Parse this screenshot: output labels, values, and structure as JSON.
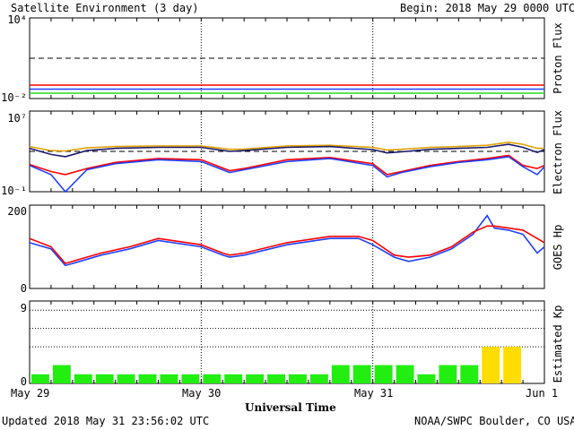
{
  "header": {
    "title": "Satellite Environment (3 day)",
    "begin": "Begin:  2018 May 29 0000 UTC"
  },
  "footer": {
    "updated": "Updated 2018 May 31 23:56:02 UTC",
    "credit": "NOAA/SWPC Boulder, CO USA"
  },
  "colors": {
    "red": "#ff0000",
    "blue": "#1f3fff",
    "green": "#22dd22",
    "orange": "#e0a000",
    "navy": "#1a1a6e",
    "kp_green": "#22ee11",
    "kp_yellow": "#ffdd00"
  },
  "chart_data": [
    {
      "type": "line",
      "ylabel": "Proton Flux",
      "yscale": "log",
      "ylim": [
        0.01,
        10000
      ],
      "ytick_labels": [
        "10⁴",
        "10⁻²"
      ],
      "threshold": 10,
      "x_unit": "hours since 2018 May 29 0000 UTC",
      "x": [
        0,
        6,
        12,
        18,
        24,
        30,
        36,
        42,
        48,
        54,
        60,
        66,
        72
      ],
      "series": [
        {
          "color": "red",
          "values": [
            0.1,
            0.1,
            0.1,
            0.1,
            0.1,
            0.1,
            0.1,
            0.1,
            0.1,
            0.1,
            0.1,
            0.1,
            0.1
          ]
        },
        {
          "color": "blue",
          "values": [
            0.05,
            0.05,
            0.05,
            0.05,
            0.05,
            0.05,
            0.05,
            0.05,
            0.05,
            0.05,
            0.05,
            0.05,
            0.05
          ]
        },
        {
          "color": "green",
          "values": [
            0.025,
            0.025,
            0.025,
            0.025,
            0.025,
            0.025,
            0.025,
            0.025,
            0.025,
            0.025,
            0.025,
            0.025,
            0.025
          ]
        }
      ]
    },
    {
      "type": "line",
      "ylabel": "Electron Flux",
      "yscale": "log",
      "ylim": [
        0.1,
        10000000
      ],
      "ytick_labels": [
        "10⁷",
        "10⁻¹"
      ],
      "threshold": 1000,
      "x": [
        0,
        3,
        5,
        8,
        12,
        18,
        24,
        28,
        30,
        36,
        42,
        48,
        50,
        52,
        56,
        60,
        64,
        67,
        69,
        71,
        72
      ],
      "series": [
        {
          "color": "orange",
          "values": [
            3000,
            1200,
            1100,
            2200,
            3000,
            3500,
            3500,
            1600,
            1700,
            3500,
            4000,
            2500,
            1400,
            1600,
            2500,
            3000,
            4000,
            8000,
            5000,
            2000,
            2000
          ]
        },
        {
          "color": "navy",
          "values": [
            2000,
            500,
            300,
            1200,
            2000,
            2500,
            2500,
            1000,
            1200,
            2500,
            3000,
            1500,
            700,
            900,
            1600,
            2000,
            2500,
            5000,
            2500,
            800,
            1500
          ]
        },
        {
          "color": "red",
          "values": [
            50,
            10,
            5,
            20,
            80,
            200,
            150,
            12,
            20,
            150,
            250,
            60,
            5,
            10,
            40,
            100,
            200,
            400,
            40,
            20,
            40
          ]
        },
        {
          "color": "blue",
          "values": [
            40,
            5,
            0.1,
            15,
            60,
            150,
            100,
            8,
            15,
            100,
            200,
            40,
            3,
            8,
            30,
            80,
            150,
            300,
            30,
            5,
            30
          ]
        }
      ]
    },
    {
      "type": "line",
      "ylabel": "GOES Hp",
      "ylim": [
        0,
        200
      ],
      "ytick_labels": [
        "200",
        "0"
      ],
      "x": [
        0,
        3,
        5,
        7,
        10,
        14,
        18,
        24,
        27,
        28,
        30,
        36,
        42,
        46,
        48,
        51,
        53,
        56,
        59,
        62,
        64,
        65,
        67,
        69,
        71,
        72
      ],
      "series": [
        {
          "color": "blue",
          "values": [
            110,
            95,
            55,
            65,
            80,
            95,
            115,
            100,
            80,
            75,
            80,
            105,
            120,
            120,
            105,
            75,
            65,
            75,
            95,
            130,
            175,
            145,
            140,
            130,
            85,
            100
          ]
        },
        {
          "color": "red",
          "values": [
            120,
            100,
            60,
            70,
            85,
            100,
            120,
            105,
            85,
            80,
            85,
            110,
            125,
            125,
            115,
            80,
            75,
            80,
            100,
            135,
            150,
            150,
            145,
            140,
            120,
            110
          ]
        }
      ]
    },
    {
      "type": "bar",
      "ylabel": "Estimated Kp",
      "ylim": [
        0,
        9
      ],
      "ytick_labels": [
        "9",
        "0"
      ],
      "gridlines": [
        4,
        6,
        8
      ],
      "bin_hours": 3,
      "values": [
        1,
        2,
        1,
        1,
        1,
        1,
        1,
        1,
        1,
        1,
        1,
        1,
        1,
        1,
        2,
        2,
        2,
        2,
        1,
        2,
        2,
        4,
        4,
        0
      ],
      "colors": [
        "kp_green",
        "kp_green",
        "kp_green",
        "kp_green",
        "kp_green",
        "kp_green",
        "kp_green",
        "kp_green",
        "kp_green",
        "kp_green",
        "kp_green",
        "kp_green",
        "kp_green",
        "kp_green",
        "kp_green",
        "kp_green",
        "kp_green",
        "kp_green",
        "kp_green",
        "kp_green",
        "kp_green",
        "kp_yellow",
        "kp_yellow",
        "kp_green"
      ]
    }
  ],
  "xaxis": {
    "labels": [
      "May 29",
      "May 30",
      "May 31",
      "Jun 1"
    ],
    "title": "Universal Time"
  }
}
